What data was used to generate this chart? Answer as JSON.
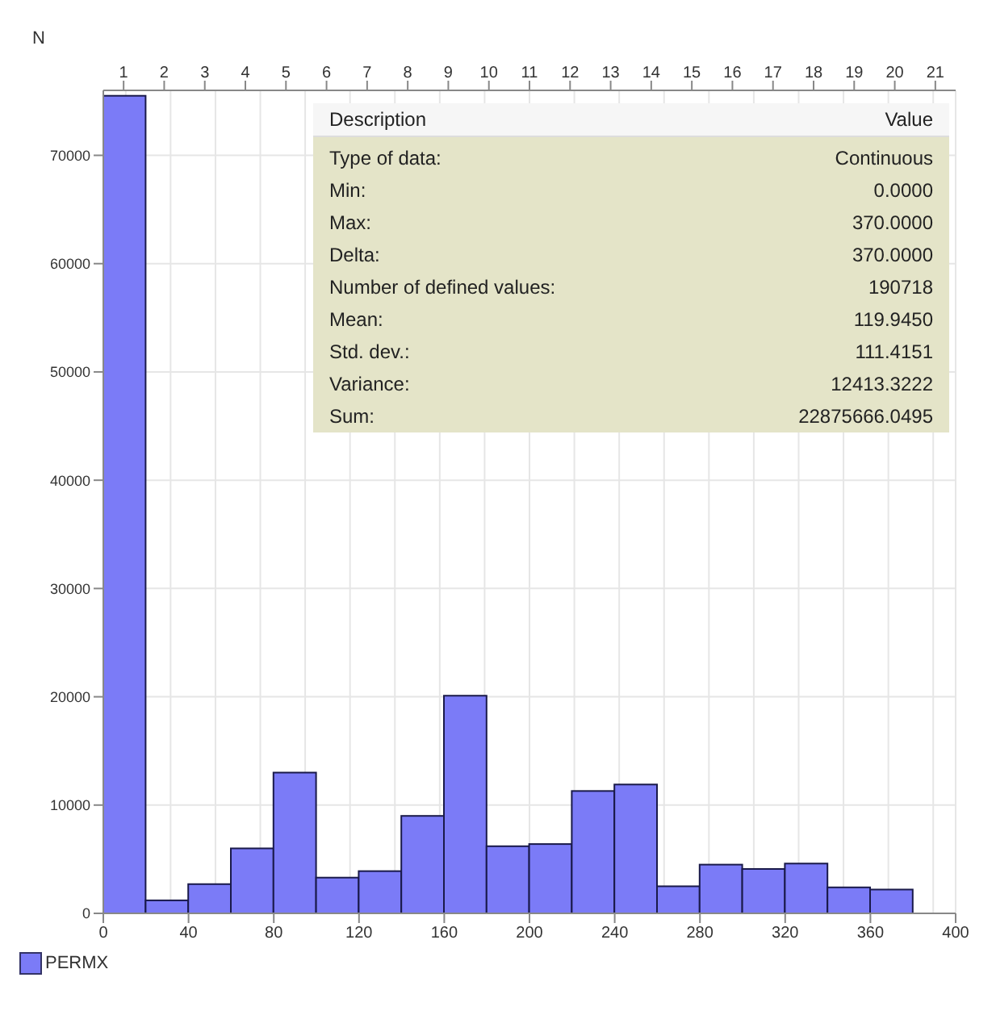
{
  "chart_data": {
    "type": "histogram",
    "ylabel": "N",
    "bins": [
      0,
      20,
      40,
      60,
      80,
      100,
      120,
      140,
      160,
      180,
      200,
      220,
      240,
      260,
      280,
      300,
      320,
      340,
      360,
      380
    ],
    "series": [
      {
        "name": "PERMX",
        "color": "#7b7bf7",
        "values": [
          75500,
          1200,
          2700,
          6000,
          13000,
          3300,
          3900,
          9000,
          20100,
          6200,
          6400,
          11300,
          11900,
          2500,
          4500,
          4100,
          4600,
          2400,
          2200
        ]
      }
    ],
    "xlim": [
      0,
      400
    ],
    "xticks": [
      0,
      40,
      80,
      120,
      160,
      200,
      240,
      280,
      320,
      360,
      400
    ],
    "ylim": [
      0,
      76000
    ],
    "yticks": [
      0,
      10000,
      20000,
      30000,
      40000,
      50000,
      60000,
      70000
    ],
    "x2lim": [
      0.5,
      21.5
    ],
    "x2ticks": [
      1,
      2,
      3,
      4,
      5,
      6,
      7,
      8,
      9,
      10,
      11,
      12,
      13,
      14,
      15,
      16,
      17,
      18,
      19,
      20,
      21
    ],
    "grid": true,
    "legend": "bottom left",
    "annotations": [
      "Description",
      "Value",
      "Type of data:",
      "Continuous",
      "Min:",
      "0.0000",
      "Max:",
      "370.0000",
      "Delta:",
      "370.0000",
      "Number of defined values:",
      "190718",
      "Mean:",
      "119.9450",
      "Std. dev.:",
      "111.4151",
      "Variance:",
      "12413.3222",
      "Sum:",
      "22875666.0495"
    ]
  }
}
